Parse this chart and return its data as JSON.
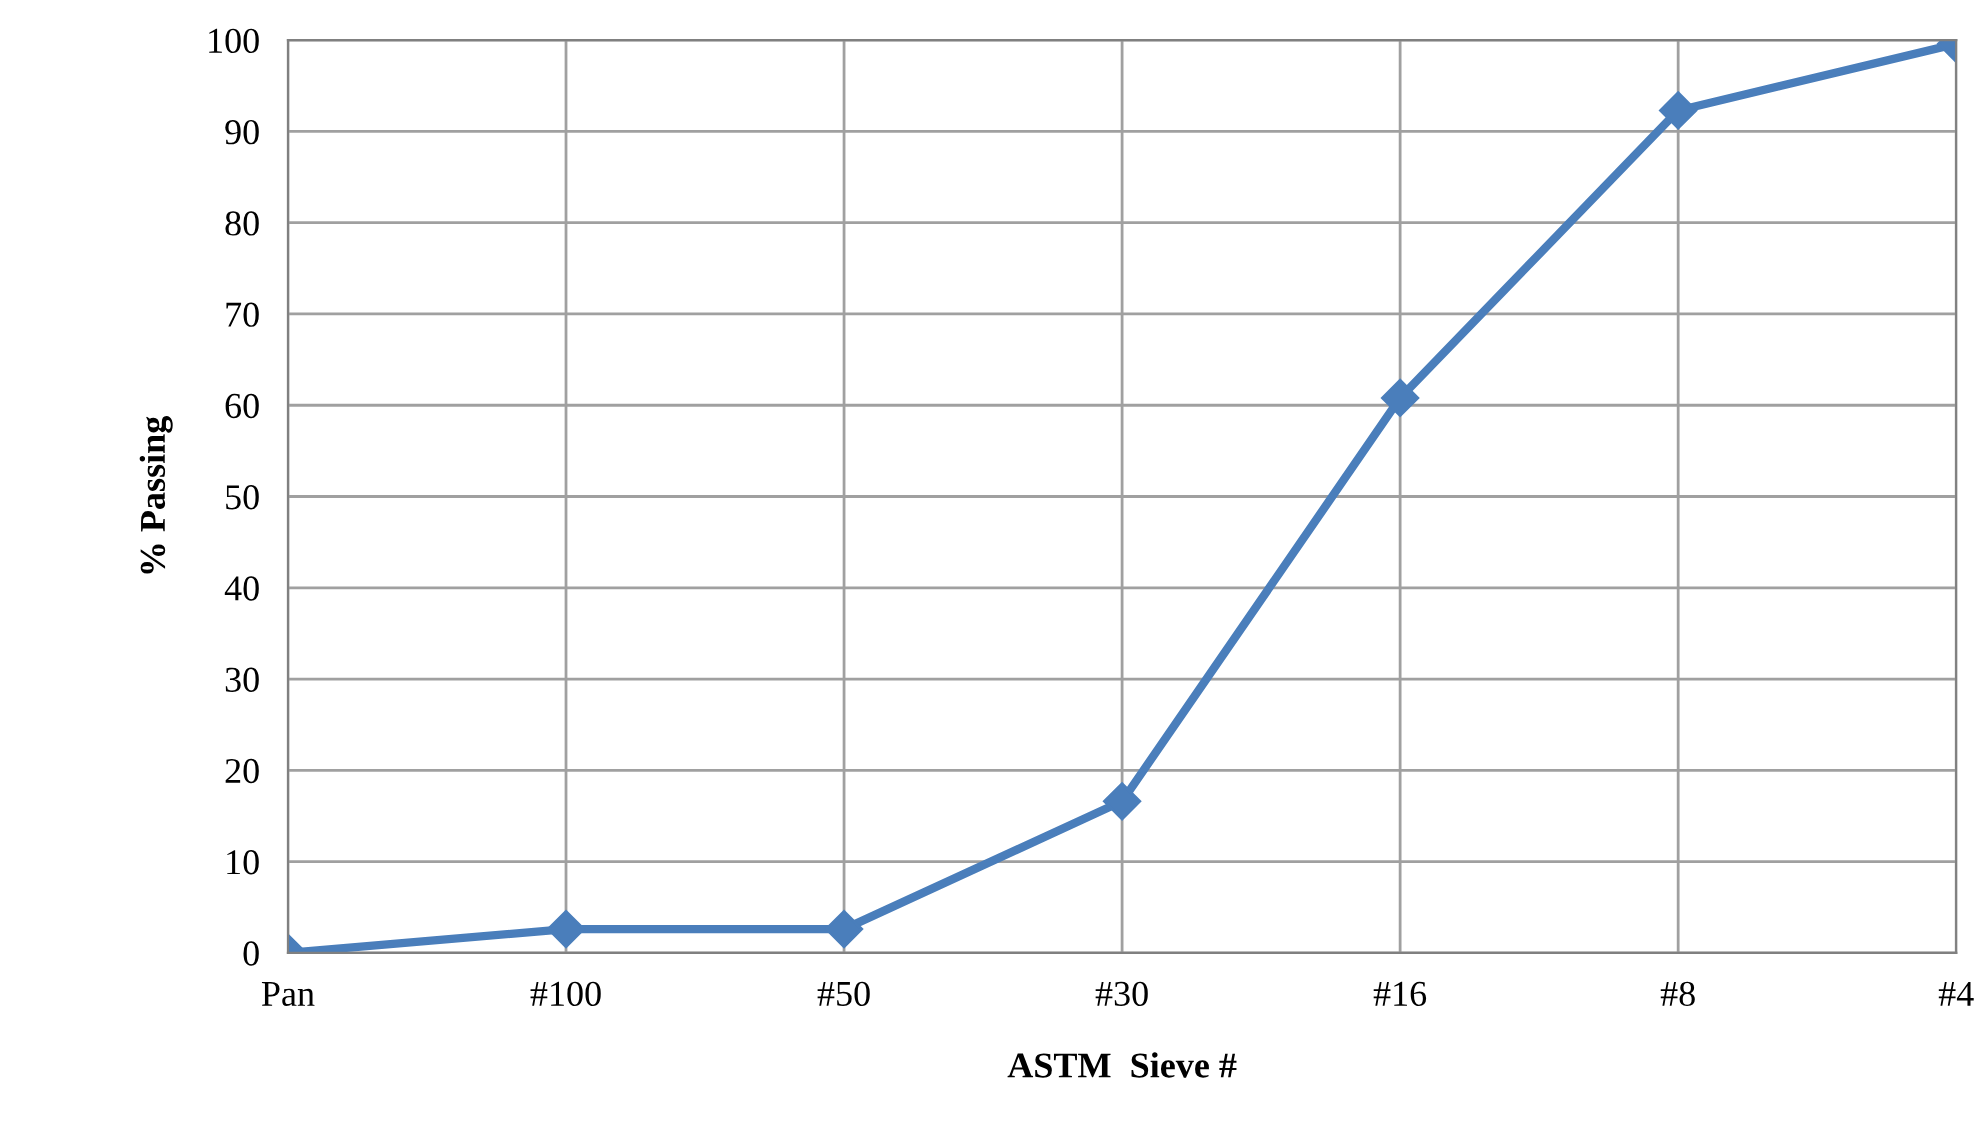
{
  "chart_data": {
    "type": "line",
    "xlabel": "ASTM  Sieve #",
    "ylabel": "% Passing",
    "categories": [
      "Pan",
      "#100",
      "#50",
      "#30",
      "#16",
      "#8",
      "#4"
    ],
    "series": [
      {
        "color": "#4a7ebb",
        "values": [
          0,
          2.6,
          2.6,
          16.6,
          60.8,
          92.3,
          99.6
        ]
      }
    ],
    "ylim": [
      0,
      100
    ],
    "yticks": [
      0,
      10,
      20,
      30,
      40,
      50,
      60,
      70,
      80,
      90,
      100
    ],
    "grid": true,
    "marker": "diamond",
    "line_style": "solid",
    "legend": false
  }
}
